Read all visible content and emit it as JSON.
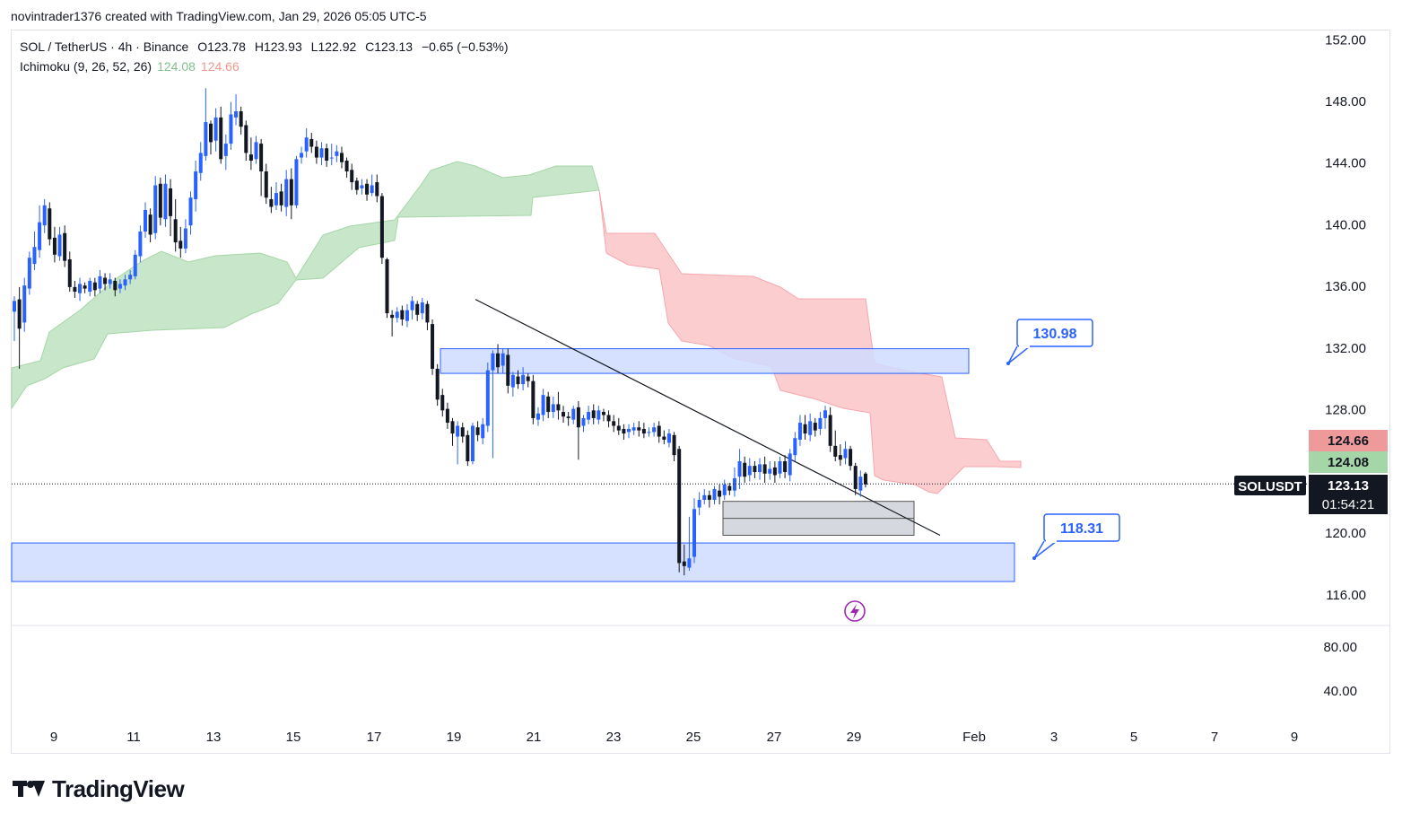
{
  "header": {
    "author_line": "novintrader1376 created with TradingView.com, Jan 29, 2026 05:05 UTC-5"
  },
  "legend": {
    "symbol": "SOL / TetherUS · 4h · Binance",
    "open": "O123.78",
    "high": "H123.93",
    "low": "L122.92",
    "close": "C123.13",
    "change": "−0.65 (−0.53%)",
    "indicator": "Ichimoku (9, 26, 52, 26)",
    "ind_val_1": "124.08",
    "ind_val_2": "124.66"
  },
  "colors": {
    "up": "#2962ff",
    "down": "#131722",
    "cloud_bull": "#c8e6c9",
    "cloud_bear": "#fccbcd",
    "zone": "#cfdcff",
    "zone_border": "#2962ff",
    "ob": "#d1d4dc"
  },
  "chart_data": {
    "type": "candlestick",
    "title": "SOL / TetherUS · 4h · Binance",
    "y_ticks": [
      "152.00",
      "148.00",
      "144.00",
      "140.00",
      "136.00",
      "132.00",
      "128.00",
      "120.00",
      "116.00"
    ],
    "lower_pane_ticks": [
      "80.00",
      "40.00"
    ],
    "x_ticks": [
      "9",
      "11",
      "13",
      "15",
      "17",
      "19",
      "21",
      "23",
      "25",
      "27",
      "29",
      "Feb",
      "3",
      "5",
      "7",
      "9"
    ],
    "ylim": [
      114.0,
      153.0
    ],
    "price_labels": {
      "senkou_b": "124.66",
      "senkou_a": "124.08",
      "symbol": "SOLUSDT",
      "last": "123.13",
      "countdown": "01:54:21"
    },
    "annotations": [
      {
        "label": "130.98",
        "price": 130.98
      },
      {
        "label": "118.31",
        "price": 118.31
      }
    ],
    "zones": [
      {
        "name": "upper-demand-zone",
        "from": 130.3,
        "to": 131.9
      },
      {
        "name": "lower-demand-zone",
        "from": 116.8,
        "to": 119.3
      },
      {
        "name": "order-block",
        "from": 119.8,
        "to": 122.0
      }
    ],
    "trendline": {
      "from_price": 135.1,
      "to_price": 119.8
    },
    "candles": [
      [
        134.3,
        135.0,
        132.4,
        135.3
      ],
      [
        135.1,
        133.2,
        130.6,
        135.9
      ],
      [
        133.6,
        136.0,
        133.0,
        136.5
      ],
      [
        135.8,
        137.8,
        135.4,
        138.2
      ],
      [
        137.4,
        138.5,
        137.0,
        139.5
      ],
      [
        138.3,
        140.1,
        137.8,
        141.2
      ],
      [
        139.9,
        141.2,
        139.4,
        141.6
      ],
      [
        141.0,
        139.0,
        138.6,
        141.4
      ],
      [
        139.1,
        138.0,
        137.5,
        139.8
      ],
      [
        137.9,
        139.3,
        137.6,
        139.8
      ],
      [
        139.4,
        137.6,
        137.2,
        139.9
      ],
      [
        137.7,
        135.9,
        135.6,
        138.2
      ],
      [
        135.9,
        135.6,
        135.2,
        136.3
      ],
      [
        135.5,
        136.1,
        135.0,
        136.5
      ],
      [
        136.0,
        135.8,
        135.5,
        136.2
      ],
      [
        135.6,
        136.3,
        135.3,
        136.5
      ],
      [
        136.2,
        135.7,
        135.3,
        136.5
      ],
      [
        135.8,
        136.6,
        135.5,
        137.0
      ],
      [
        136.5,
        136.1,
        135.7,
        136.8
      ],
      [
        136.1,
        136.4,
        135.8,
        136.8
      ],
      [
        136.3,
        135.7,
        135.3,
        136.5
      ],
      [
        135.8,
        136.1,
        135.5,
        136.4
      ],
      [
        136.0,
        136.4,
        135.7,
        136.7
      ],
      [
        136.4,
        136.7,
        136.1,
        137.0
      ],
      [
        136.6,
        138.0,
        136.4,
        138.3
      ],
      [
        137.9,
        139.5,
        137.5,
        139.9
      ],
      [
        139.5,
        140.9,
        139.1,
        141.4
      ],
      [
        140.6,
        139.3,
        138.8,
        141.0
      ],
      [
        139.4,
        142.5,
        139.0,
        143.1
      ],
      [
        142.6,
        140.4,
        139.9,
        143.0
      ],
      [
        140.3,
        142.6,
        139.8,
        143.2
      ],
      [
        142.3,
        140.5,
        139.2,
        142.9
      ],
      [
        140.3,
        138.8,
        138.2,
        141.6
      ],
      [
        138.9,
        138.4,
        137.8,
        139.8
      ],
      [
        138.4,
        139.7,
        138.1,
        140.3
      ],
      [
        139.9,
        141.7,
        139.3,
        142.1
      ],
      [
        141.6,
        143.4,
        140.8,
        144.1
      ],
      [
        143.3,
        144.6,
        142.8,
        145.3
      ],
      [
        144.4,
        146.6,
        144.1,
        148.8
      ],
      [
        146.5,
        145.3,
        144.5,
        146.7
      ],
      [
        145.4,
        146.9,
        144.7,
        147.5
      ],
      [
        146.9,
        144.2,
        143.9,
        147.6
      ],
      [
        144.4,
        145.2,
        143.5,
        145.8
      ],
      [
        145.2,
        147.1,
        144.8,
        147.9
      ],
      [
        146.9,
        147.3,
        146.4,
        148.4
      ],
      [
        147.3,
        146.3,
        145.8,
        147.6
      ],
      [
        146.4,
        144.6,
        144.1,
        146.7
      ],
      [
        144.5,
        144.1,
        143.5,
        145.6
      ],
      [
        144.2,
        145.3,
        143.9,
        145.7
      ],
      [
        145.2,
        143.4,
        141.8,
        145.5
      ],
      [
        143.4,
        141.7,
        141.3,
        143.9
      ],
      [
        141.6,
        141.1,
        140.7,
        142.4
      ],
      [
        141.2,
        142.0,
        140.9,
        142.7
      ],
      [
        142.1,
        141.2,
        140.8,
        142.6
      ],
      [
        141.1,
        142.9,
        140.5,
        143.5
      ],
      [
        142.9,
        141.2,
        140.3,
        143.6
      ],
      [
        141.2,
        144.2,
        141.0,
        144.4
      ],
      [
        144.3,
        144.6,
        143.9,
        145.0
      ],
      [
        144.7,
        145.6,
        144.3,
        146.2
      ],
      [
        145.5,
        145.0,
        144.6,
        145.9
      ],
      [
        145.0,
        144.3,
        143.9,
        145.4
      ],
      [
        144.3,
        144.9,
        143.8,
        145.3
      ],
      [
        144.9,
        144.1,
        143.7,
        145.2
      ],
      [
        144.3,
        144.3,
        143.8,
        145.2
      ],
      [
        144.4,
        144.7,
        144.0,
        145.1
      ],
      [
        144.6,
        144.0,
        143.6,
        145.0
      ],
      [
        144.1,
        143.4,
        143.0,
        144.3
      ],
      [
        143.5,
        142.7,
        142.2,
        143.9
      ],
      [
        142.8,
        142.2,
        141.9,
        143.0
      ],
      [
        142.3,
        142.5,
        141.9,
        142.9
      ],
      [
        142.6,
        141.9,
        141.5,
        142.9
      ],
      [
        142.0,
        142.5,
        141.8,
        143.2
      ],
      [
        142.7,
        141.8,
        141.4,
        143.2
      ],
      [
        141.8,
        137.8,
        137.4,
        142.0
      ],
      [
        137.7,
        134.2,
        133.9,
        137.8
      ],
      [
        134.1,
        133.9,
        132.7,
        134.4
      ],
      [
        133.9,
        134.3,
        133.6,
        134.6
      ],
      [
        134.4,
        133.8,
        133.4,
        134.7
      ],
      [
        133.7,
        134.4,
        133.3,
        134.8
      ],
      [
        134.4,
        135.0,
        133.8,
        135.3
      ],
      [
        134.8,
        134.1,
        133.7,
        135.0
      ],
      [
        134.2,
        134.9,
        133.8,
        135.2
      ],
      [
        134.8,
        133.6,
        133.1,
        135.0
      ],
      [
        133.5,
        130.6,
        130.2,
        133.8
      ],
      [
        130.6,
        128.6,
        128.2,
        130.9
      ],
      [
        128.9,
        127.9,
        127.5,
        129.3
      ],
      [
        128.0,
        127.1,
        126.7,
        128.4
      ],
      [
        127.2,
        126.4,
        125.6,
        127.4
      ],
      [
        126.2,
        126.9,
        124.4,
        127.2
      ],
      [
        126.8,
        126.2,
        125.8,
        127.1
      ],
      [
        126.3,
        124.6,
        124.3,
        126.6
      ],
      [
        124.6,
        126.9,
        124.4,
        127.1
      ],
      [
        126.8,
        126.3,
        125.9,
        127.2
      ],
      [
        126.1,
        127.0,
        125.7,
        127.4
      ],
      [
        126.9,
        130.5,
        126.5,
        131.0
      ],
      [
        130.5,
        131.6,
        124.8,
        131.8
      ],
      [
        131.6,
        130.7,
        130.3,
        132.2
      ],
      [
        130.8,
        131.6,
        130.3,
        131.9
      ],
      [
        131.5,
        129.5,
        129.0,
        131.9
      ],
      [
        129.4,
        130.2,
        128.8,
        130.4
      ],
      [
        130.1,
        129.6,
        129.3,
        130.5
      ],
      [
        129.6,
        130.2,
        129.2,
        130.7
      ],
      [
        130.1,
        129.8,
        129.4,
        130.3
      ],
      [
        129.8,
        127.4,
        127.0,
        130.2
      ],
      [
        127.3,
        127.7,
        126.9,
        128.1
      ],
      [
        127.6,
        128.9,
        127.2,
        129.3
      ],
      [
        128.8,
        127.8,
        127.4,
        129.1
      ],
      [
        127.8,
        128.3,
        127.4,
        128.8
      ],
      [
        128.3,
        127.9,
        127.3,
        129.1
      ],
      [
        127.8,
        127.5,
        127.1,
        128.2
      ],
      [
        127.5,
        127.4,
        126.9,
        127.8
      ],
      [
        127.3,
        128.0,
        127.0,
        128.2
      ],
      [
        128.1,
        126.8,
        124.7,
        128.5
      ],
      [
        126.9,
        127.4,
        126.5,
        127.6
      ],
      [
        127.3,
        127.8,
        127.0,
        128.2
      ],
      [
        127.9,
        127.4,
        127.0,
        128.3
      ],
      [
        127.3,
        127.9,
        127.0,
        128.2
      ],
      [
        127.8,
        127.6,
        127.2,
        128.0
      ],
      [
        127.6,
        127.2,
        126.8,
        127.9
      ],
      [
        127.2,
        126.9,
        126.5,
        127.6
      ],
      [
        126.9,
        126.6,
        126.3,
        127.4
      ],
      [
        126.7,
        126.4,
        126.0,
        127.0
      ],
      [
        126.5,
        126.7,
        126.1,
        127.0
      ],
      [
        126.6,
        126.8,
        126.3,
        127.1
      ],
      [
        126.8,
        126.6,
        126.2,
        127.2
      ],
      [
        126.7,
        126.4,
        126.1,
        127.1
      ],
      [
        126.5,
        126.5,
        126.2,
        126.8
      ],
      [
        126.5,
        126.8,
        126.2,
        127.1
      ],
      [
        126.9,
        126.2,
        125.8,
        127.2
      ],
      [
        126.2,
        126.0,
        125.7,
        126.6
      ],
      [
        125.8,
        126.4,
        125.5,
        126.7
      ],
      [
        126.3,
        125.0,
        124.6,
        126.5
      ],
      [
        125.4,
        118.0,
        117.4,
        125.6
      ],
      [
        118.1,
        117.8,
        117.2,
        119.2
      ],
      [
        117.7,
        118.3,
        117.5,
        121.0
      ],
      [
        118.4,
        121.5,
        118.0,
        122.2
      ],
      [
        121.6,
        122.1,
        121.1,
        122.6
      ],
      [
        122.1,
        122.4,
        121.8,
        122.8
      ],
      [
        122.4,
        122.1,
        121.6,
        122.7
      ],
      [
        122.1,
        122.8,
        121.8,
        123.0
      ],
      [
        122.7,
        122.3,
        121.8,
        123.1
      ],
      [
        122.4,
        123.1,
        122.1,
        123.4
      ],
      [
        123.0,
        122.7,
        122.4,
        123.2
      ],
      [
        122.7,
        123.5,
        122.3,
        124.2
      ],
      [
        123.6,
        124.6,
        122.8,
        125.4
      ],
      [
        124.5,
        123.6,
        123.2,
        124.9
      ],
      [
        123.7,
        124.3,
        123.3,
        124.8
      ],
      [
        124.3,
        123.9,
        123.5,
        124.6
      ],
      [
        123.9,
        124.4,
        123.4,
        124.8
      ],
      [
        124.4,
        123.8,
        123.2,
        124.9
      ],
      [
        123.8,
        124.1,
        123.4,
        124.6
      ],
      [
        124.2,
        123.7,
        123.2,
        124.6
      ],
      [
        123.8,
        124.6,
        123.5,
        124.9
      ],
      [
        124.6,
        123.9,
        123.5,
        125.0
      ],
      [
        123.7,
        125.1,
        123.3,
        125.4
      ],
      [
        125.0,
        126.1,
        124.6,
        126.5
      ],
      [
        126.0,
        127.1,
        125.6,
        127.6
      ],
      [
        127.0,
        126.4,
        126.0,
        127.6
      ],
      [
        126.3,
        127.2,
        125.9,
        127.7
      ],
      [
        127.1,
        126.6,
        126.2,
        127.4
      ],
      [
        126.7,
        127.4,
        126.3,
        127.8
      ],
      [
        127.4,
        127.9,
        126.7,
        128.2
      ],
      [
        127.6,
        125.6,
        125.2,
        128.1
      ],
      [
        125.6,
        124.9,
        124.6,
        126.6
      ],
      [
        125.0,
        124.7,
        124.3,
        125.7
      ],
      [
        124.8,
        125.4,
        124.4,
        125.9
      ],
      [
        125.4,
        124.3,
        124.0,
        125.6
      ],
      [
        124.3,
        122.8,
        122.4,
        124.5
      ],
      [
        122.7,
        123.6,
        122.3,
        124.0
      ],
      [
        123.8,
        123.1,
        122.9,
        123.9
      ]
    ]
  }
}
